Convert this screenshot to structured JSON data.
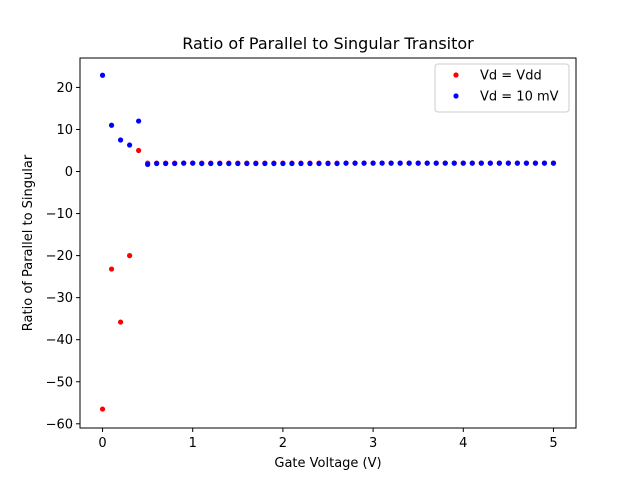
{
  "chart_data": {
    "type": "scatter",
    "title": "Ratio of Parallel to Singular Transitor",
    "xlabel": "Gate Voltage (V)",
    "ylabel": "Ratio of Parallel to Singular",
    "xlim": [
      -0.25,
      5.25
    ],
    "ylim": [
      -61,
      27
    ],
    "xticks": [
      0,
      1,
      2,
      3,
      4,
      5
    ],
    "xtick_labels": [
      "0",
      "1",
      "2",
      "3",
      "4",
      "5"
    ],
    "yticks": [
      -60,
      -50,
      -40,
      -30,
      -20,
      -10,
      0,
      10,
      20
    ],
    "ytick_labels": [
      "−60",
      "−50",
      "−40",
      "−30",
      "−20",
      "−10",
      "0",
      "10",
      "20"
    ],
    "grid": false,
    "legend_position": "top-right",
    "series": [
      {
        "name": "Vd = Vdd",
        "color": "#ff0000",
        "x": [
          0.0,
          0.1,
          0.2,
          0.3,
          0.4,
          0.5,
          0.6,
          0.7,
          0.8,
          0.9,
          1.0,
          1.1,
          1.2,
          1.3,
          1.4,
          1.5,
          1.6,
          1.7,
          1.8,
          1.9,
          2.0,
          2.1,
          2.2,
          2.3,
          2.4,
          2.5,
          2.6,
          2.7,
          2.8,
          2.9,
          3.0,
          3.1,
          3.2,
          3.3,
          3.4,
          3.5,
          3.6,
          3.7,
          3.8,
          3.9,
          4.0,
          4.1,
          4.2,
          4.3,
          4.4,
          4.5,
          4.6,
          4.7,
          4.8,
          4.9,
          5.0
        ],
        "y": [
          -56.5,
          -23.2,
          -35.8,
          -20.0,
          5.0,
          2.0,
          2.0,
          2.0,
          2.0,
          2.0,
          2.0,
          2.0,
          2.0,
          2.0,
          2.0,
          2.0,
          2.0,
          2.0,
          2.0,
          2.0,
          2.0,
          2.0,
          2.0,
          2.0,
          2.0,
          2.0,
          2.0,
          2.0,
          2.0,
          2.0,
          2.0,
          2.0,
          2.0,
          2.0,
          2.0,
          2.0,
          2.0,
          2.0,
          2.0,
          2.0,
          2.0,
          2.0,
          2.0,
          2.0,
          2.0,
          2.0,
          2.0,
          2.0,
          2.0,
          2.0,
          2.0
        ]
      },
      {
        "name": "Vd = 10 mV",
        "color": "#0000ff",
        "x": [
          0.0,
          0.1,
          0.2,
          0.3,
          0.4,
          0.5,
          0.6,
          0.7,
          0.8,
          0.9,
          1.0,
          1.1,
          1.2,
          1.3,
          1.4,
          1.5,
          1.6,
          1.7,
          1.8,
          1.9,
          2.0,
          2.1,
          2.2,
          2.3,
          2.4,
          2.5,
          2.6,
          2.7,
          2.8,
          2.9,
          3.0,
          3.1,
          3.2,
          3.3,
          3.4,
          3.5,
          3.6,
          3.7,
          3.8,
          3.9,
          4.0,
          4.1,
          4.2,
          4.3,
          4.4,
          4.5,
          4.6,
          4.7,
          4.8,
          4.9,
          5.0
        ],
        "y": [
          22.9,
          11.0,
          7.5,
          6.3,
          12.0,
          1.7,
          1.9,
          1.9,
          1.9,
          2.0,
          2.0,
          1.9,
          1.9,
          1.9,
          1.9,
          1.9,
          1.9,
          1.9,
          1.9,
          1.9,
          1.9,
          1.9,
          1.9,
          1.9,
          1.9,
          1.9,
          1.9,
          2.0,
          2.0,
          2.0,
          2.0,
          2.0,
          2.0,
          2.0,
          2.0,
          2.0,
          2.0,
          2.0,
          2.0,
          2.0,
          2.0,
          2.0,
          2.0,
          2.0,
          2.0,
          2.0,
          2.0,
          2.0,
          2.0,
          2.0,
          2.0
        ]
      }
    ]
  }
}
